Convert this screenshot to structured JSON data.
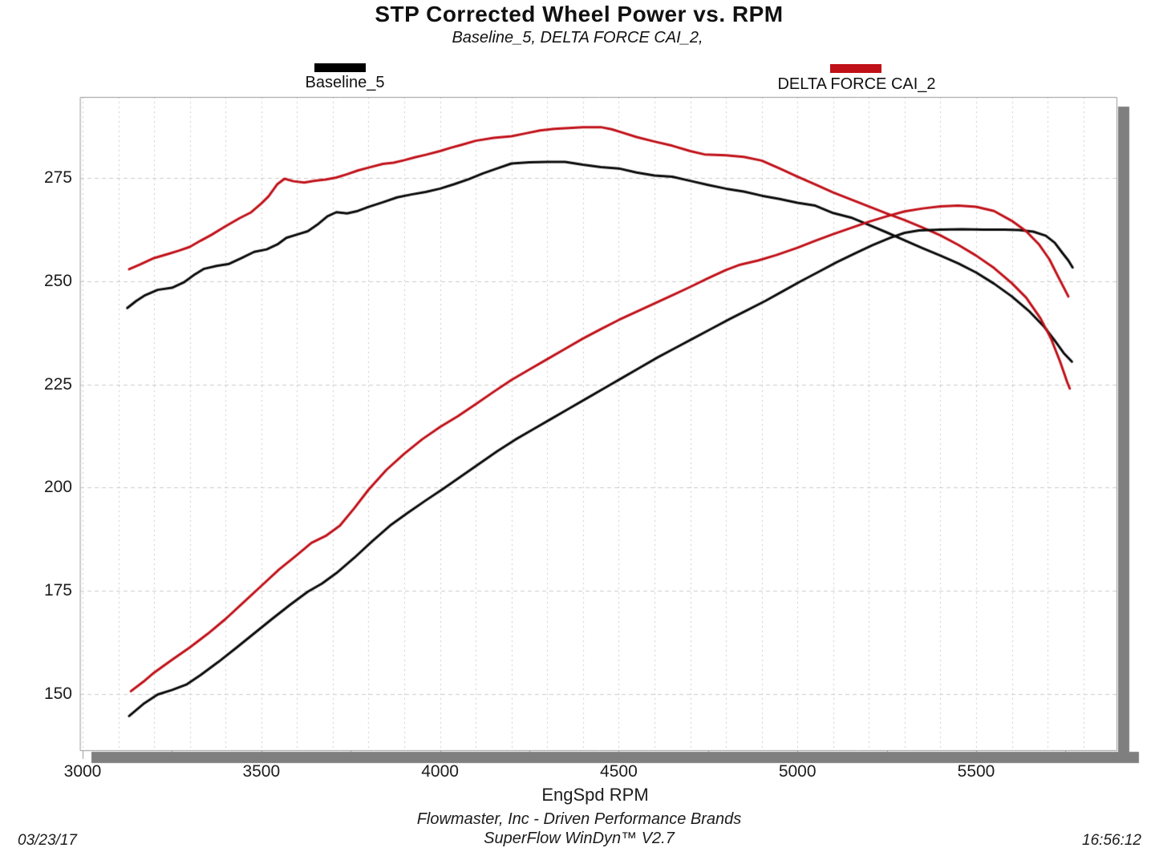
{
  "header": {
    "title": "STP Corrected Wheel Power vs. RPM",
    "subtitle": "Baseline_5, DELTA FORCE CAI_2,"
  },
  "legend": {
    "entries": [
      {
        "label": "Baseline_5",
        "color": "#000000"
      },
      {
        "label": "DELTA FORCE CAI_2",
        "color": "#c01018"
      }
    ]
  },
  "axis": {
    "xlabel": "EngSpd RPM"
  },
  "footer": {
    "line1": "Flowmaster, Inc - Driven Performance Brands",
    "line2": "SuperFlow WinDyn™ V2.7",
    "date": "03/23/17",
    "time": "16:56:12"
  },
  "chart_data": {
    "type": "line",
    "title": "STP Corrected Wheel Power vs. RPM",
    "subtitle": "Baseline_5, DELTA FORCE CAI_2,",
    "xlabel": "EngSpd RPM",
    "ylabel": "",
    "xlim": [
      2993,
      5893
    ],
    "ylim": [
      136.4,
      294.6
    ],
    "x_ticks": [
      3000,
      3500,
      4000,
      4500,
      5000,
      5500
    ],
    "y_ticks": [
      150,
      175,
      200,
      225,
      250,
      275
    ],
    "grid": {
      "on": true,
      "x_minor_step_rpm": 100,
      "x_tick_step_rpm": 250,
      "y_step": 25
    },
    "legend_position": "top",
    "colors": {
      "grid": "#cbcbcb",
      "frame": "#999999",
      "shadow": "#7f7f7f",
      "black_series": "#0a0a0a",
      "red_series": "#c01018"
    },
    "series": [
      {
        "name": "Baseline_5 upper (torque trace)",
        "color": "#0a0a0a",
        "points": [
          [
            3125,
            243.5
          ],
          [
            3150,
            245.2
          ],
          [
            3175,
            246.6
          ],
          [
            3210,
            247.9
          ],
          [
            3250,
            248.4
          ],
          [
            3285,
            249.8
          ],
          [
            3310,
            251.4
          ],
          [
            3340,
            253.0
          ],
          [
            3375,
            253.7
          ],
          [
            3410,
            254.2
          ],
          [
            3445,
            255.6
          ],
          [
            3480,
            257.1
          ],
          [
            3515,
            257.7
          ],
          [
            3545,
            258.9
          ],
          [
            3570,
            260.5
          ],
          [
            3600,
            261.3
          ],
          [
            3630,
            262.1
          ],
          [
            3660,
            263.9
          ],
          [
            3685,
            265.7
          ],
          [
            3710,
            266.7
          ],
          [
            3740,
            266.4
          ],
          [
            3770,
            267.0
          ],
          [
            3800,
            268.0
          ],
          [
            3840,
            269.1
          ],
          [
            3880,
            270.3
          ],
          [
            3920,
            271.0
          ],
          [
            3960,
            271.6
          ],
          [
            4000,
            272.4
          ],
          [
            4040,
            273.5
          ],
          [
            4080,
            274.7
          ],
          [
            4120,
            276.1
          ],
          [
            4160,
            277.3
          ],
          [
            4200,
            278.5
          ],
          [
            4250,
            278.8
          ],
          [
            4300,
            278.9
          ],
          [
            4350,
            278.9
          ],
          [
            4400,
            278.2
          ],
          [
            4450,
            277.6
          ],
          [
            4500,
            277.3
          ],
          [
            4550,
            276.3
          ],
          [
            4600,
            275.6
          ],
          [
            4650,
            275.3
          ],
          [
            4700,
            274.3
          ],
          [
            4750,
            273.3
          ],
          [
            4800,
            272.4
          ],
          [
            4850,
            271.7
          ],
          [
            4900,
            270.7
          ],
          [
            4950,
            269.9
          ],
          [
            5000,
            269.0
          ],
          [
            5050,
            268.3
          ],
          [
            5100,
            266.5
          ],
          [
            5150,
            265.4
          ],
          [
            5200,
            263.6
          ],
          [
            5250,
            261.8
          ],
          [
            5300,
            259.9
          ],
          [
            5350,
            258.0
          ],
          [
            5400,
            256.2
          ],
          [
            5450,
            254.3
          ],
          [
            5500,
            252.1
          ],
          [
            5550,
            249.4
          ],
          [
            5600,
            246.3
          ],
          [
            5650,
            242.6
          ],
          [
            5690,
            239.0
          ],
          [
            5720,
            235.6
          ],
          [
            5745,
            232.6
          ],
          [
            5768,
            230.5
          ]
        ]
      },
      {
        "name": "DELTA FORCE CAI_2 upper (torque trace)",
        "color": "#c01018",
        "points": [
          [
            3130,
            252.9
          ],
          [
            3160,
            254.0
          ],
          [
            3200,
            255.6
          ],
          [
            3240,
            256.6
          ],
          [
            3270,
            257.4
          ],
          [
            3300,
            258.3
          ],
          [
            3330,
            259.8
          ],
          [
            3360,
            261.2
          ],
          [
            3400,
            263.3
          ],
          [
            3440,
            265.3
          ],
          [
            3470,
            266.6
          ],
          [
            3500,
            268.8
          ],
          [
            3520,
            270.5
          ],
          [
            3545,
            273.5
          ],
          [
            3565,
            274.8
          ],
          [
            3590,
            274.2
          ],
          [
            3620,
            273.9
          ],
          [
            3650,
            274.3
          ],
          [
            3680,
            274.6
          ],
          [
            3710,
            275.1
          ],
          [
            3740,
            275.9
          ],
          [
            3770,
            276.8
          ],
          [
            3800,
            277.5
          ],
          [
            3840,
            278.4
          ],
          [
            3870,
            278.7
          ],
          [
            3900,
            279.3
          ],
          [
            3930,
            280.0
          ],
          [
            3960,
            280.6
          ],
          [
            4000,
            281.5
          ],
          [
            4030,
            282.3
          ],
          [
            4060,
            283.0
          ],
          [
            4100,
            284.0
          ],
          [
            4150,
            284.7
          ],
          [
            4200,
            285.1
          ],
          [
            4240,
            285.8
          ],
          [
            4280,
            286.5
          ],
          [
            4320,
            286.9
          ],
          [
            4360,
            287.1
          ],
          [
            4400,
            287.3
          ],
          [
            4450,
            287.3
          ],
          [
            4480,
            286.8
          ],
          [
            4510,
            286.0
          ],
          [
            4550,
            284.9
          ],
          [
            4600,
            283.8
          ],
          [
            4650,
            282.8
          ],
          [
            4700,
            281.5
          ],
          [
            4740,
            280.7
          ],
          [
            4800,
            280.5
          ],
          [
            4850,
            280.1
          ],
          [
            4900,
            279.2
          ],
          [
            4950,
            277.3
          ],
          [
            5000,
            275.3
          ],
          [
            5050,
            273.4
          ],
          [
            5100,
            271.5
          ],
          [
            5150,
            269.8
          ],
          [
            5200,
            268.1
          ],
          [
            5250,
            266.4
          ],
          [
            5300,
            264.8
          ],
          [
            5350,
            263.0
          ],
          [
            5400,
            261.1
          ],
          [
            5450,
            258.8
          ],
          [
            5500,
            256.2
          ],
          [
            5550,
            253.2
          ],
          [
            5600,
            249.5
          ],
          [
            5640,
            246.0
          ],
          [
            5680,
            241.0
          ],
          [
            5710,
            236.0
          ],
          [
            5735,
            230.5
          ],
          [
            5755,
            225.5
          ],
          [
            5762,
            224.0
          ]
        ]
      },
      {
        "name": "Baseline_5 power",
        "color": "#0a0a0a",
        "points": [
          [
            3130,
            144.7
          ],
          [
            3170,
            147.6
          ],
          [
            3210,
            149.9
          ],
          [
            3250,
            151.0
          ],
          [
            3290,
            152.3
          ],
          [
            3330,
            154.6
          ],
          [
            3380,
            157.8
          ],
          [
            3430,
            161.2
          ],
          [
            3480,
            164.7
          ],
          [
            3530,
            168.2
          ],
          [
            3580,
            171.6
          ],
          [
            3630,
            174.8
          ],
          [
            3670,
            176.8
          ],
          [
            3710,
            179.3
          ],
          [
            3760,
            183.0
          ],
          [
            3810,
            187.0
          ],
          [
            3860,
            190.8
          ],
          [
            3910,
            193.9
          ],
          [
            3960,
            196.9
          ],
          [
            4010,
            199.8
          ],
          [
            4060,
            202.8
          ],
          [
            4110,
            205.8
          ],
          [
            4160,
            208.8
          ],
          [
            4210,
            211.6
          ],
          [
            4260,
            214.1
          ],
          [
            4310,
            216.6
          ],
          [
            4360,
            219.1
          ],
          [
            4410,
            221.6
          ],
          [
            4460,
            224.1
          ],
          [
            4510,
            226.6
          ],
          [
            4560,
            229.1
          ],
          [
            4610,
            231.6
          ],
          [
            4660,
            233.9
          ],
          [
            4710,
            236.2
          ],
          [
            4760,
            238.5
          ],
          [
            4810,
            240.8
          ],
          [
            4860,
            243.0
          ],
          [
            4910,
            245.2
          ],
          [
            4960,
            247.6
          ],
          [
            5010,
            250.0
          ],
          [
            5060,
            252.3
          ],
          [
            5110,
            254.6
          ],
          [
            5160,
            256.7
          ],
          [
            5210,
            258.7
          ],
          [
            5260,
            260.5
          ],
          [
            5300,
            261.7
          ],
          [
            5340,
            262.3
          ],
          [
            5400,
            262.5
          ],
          [
            5460,
            262.6
          ],
          [
            5520,
            262.5
          ],
          [
            5580,
            262.5
          ],
          [
            5620,
            262.4
          ],
          [
            5660,
            262.0
          ],
          [
            5695,
            261.0
          ],
          [
            5720,
            259.3
          ],
          [
            5740,
            257.0
          ],
          [
            5758,
            255.0
          ],
          [
            5770,
            253.3
          ]
        ]
      },
      {
        "name": "DELTA FORCE CAI_2 power",
        "color": "#c01018",
        "points": [
          [
            3135,
            150.7
          ],
          [
            3170,
            153.0
          ],
          [
            3200,
            155.2
          ],
          [
            3250,
            158.3
          ],
          [
            3300,
            161.3
          ],
          [
            3350,
            164.6
          ],
          [
            3400,
            168.2
          ],
          [
            3450,
            172.2
          ],
          [
            3500,
            176.2
          ],
          [
            3550,
            180.2
          ],
          [
            3600,
            183.7
          ],
          [
            3640,
            186.6
          ],
          [
            3680,
            188.3
          ],
          [
            3720,
            190.8
          ],
          [
            3760,
            195.0
          ],
          [
            3800,
            199.5
          ],
          [
            3850,
            204.3
          ],
          [
            3900,
            208.2
          ],
          [
            3950,
            211.7
          ],
          [
            4000,
            214.7
          ],
          [
            4050,
            217.3
          ],
          [
            4100,
            220.2
          ],
          [
            4150,
            223.2
          ],
          [
            4200,
            226.1
          ],
          [
            4250,
            228.6
          ],
          [
            4300,
            231.1
          ],
          [
            4350,
            233.6
          ],
          [
            4400,
            236.1
          ],
          [
            4450,
            238.4
          ],
          [
            4500,
            240.6
          ],
          [
            4550,
            242.6
          ],
          [
            4600,
            244.6
          ],
          [
            4650,
            246.6
          ],
          [
            4700,
            248.6
          ],
          [
            4750,
            250.7
          ],
          [
            4800,
            252.7
          ],
          [
            4840,
            254.0
          ],
          [
            4890,
            255.0
          ],
          [
            4940,
            256.3
          ],
          [
            5000,
            258.1
          ],
          [
            5050,
            259.8
          ],
          [
            5100,
            261.4
          ],
          [
            5150,
            262.9
          ],
          [
            5200,
            264.4
          ],
          [
            5250,
            265.7
          ],
          [
            5300,
            266.9
          ],
          [
            5350,
            267.6
          ],
          [
            5400,
            268.1
          ],
          [
            5450,
            268.3
          ],
          [
            5500,
            268.0
          ],
          [
            5550,
            267.0
          ],
          [
            5600,
            264.6
          ],
          [
            5640,
            262.1
          ],
          [
            5675,
            259.0
          ],
          [
            5705,
            255.3
          ],
          [
            5730,
            251.0
          ],
          [
            5748,
            248.0
          ],
          [
            5758,
            246.3
          ]
        ]
      }
    ]
  }
}
